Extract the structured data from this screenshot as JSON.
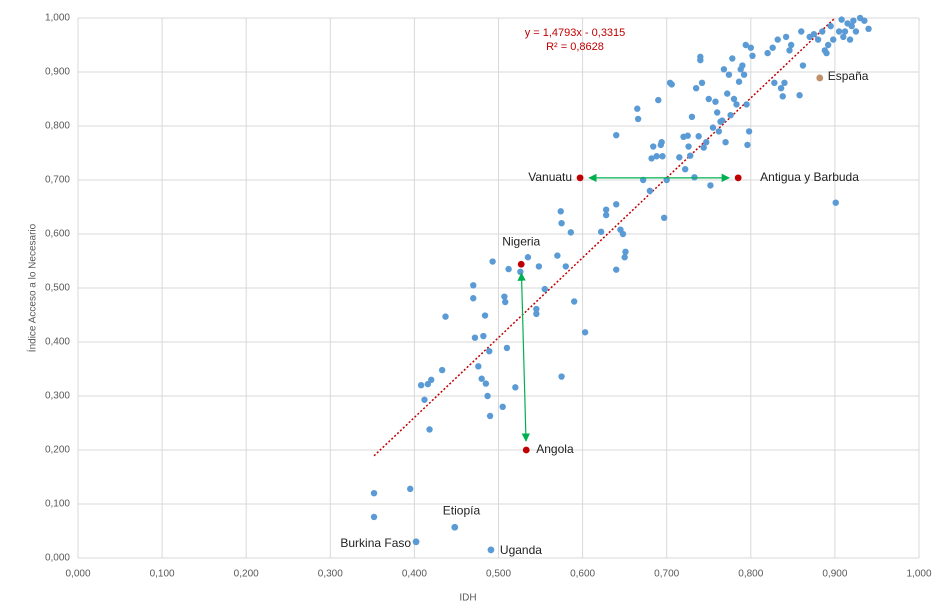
{
  "chart_data": {
    "type": "scatter",
    "x_label": "IDH",
    "y_label": "Índice Acceso a lo Necesario",
    "xlim": [
      0,
      1
    ],
    "ylim": [
      0,
      1
    ],
    "xticks": [
      {
        "value": 0,
        "label": "0,000"
      },
      {
        "value": 0.1,
        "label": "0,100"
      },
      {
        "value": 0.2,
        "label": "0,200"
      },
      {
        "value": 0.3,
        "label": "0,300"
      },
      {
        "value": 0.4,
        "label": "0,400"
      },
      {
        "value": 0.5,
        "label": "0,500"
      },
      {
        "value": 0.6,
        "label": "0,600"
      },
      {
        "value": 0.7,
        "label": "0,700"
      },
      {
        "value": 0.8,
        "label": "0,800"
      },
      {
        "value": 0.9,
        "label": "0,900"
      },
      {
        "value": 1,
        "label": "1,000"
      }
    ],
    "yticks": [
      {
        "value": 0,
        "label": "0,000"
      },
      {
        "value": 0.1,
        "label": "0,100"
      },
      {
        "value": 0.2,
        "label": "0,200"
      },
      {
        "value": 0.3,
        "label": "0,300"
      },
      {
        "value": 0.4,
        "label": "0,400"
      },
      {
        "value": 0.5,
        "label": "0,500"
      },
      {
        "value": 0.6,
        "label": "0,600"
      },
      {
        "value": 0.7,
        "label": "0,700"
      },
      {
        "value": 0.8,
        "label": "0,800"
      },
      {
        "value": 0.9,
        "label": "0,900"
      },
      {
        "value": 1,
        "label": "1,000"
      }
    ],
    "grid": true,
    "color": "#5b9bd5",
    "x": [
      0.352,
      0.352,
      0.395,
      0.408,
      0.412,
      0.416,
      0.418,
      0.42,
      0.433,
      0.437,
      0.47,
      0.47,
      0.472,
      0.476,
      0.48,
      0.482,
      0.484,
      0.485,
      0.487,
      0.489,
      0.49,
      0.493,
      0.505,
      0.507,
      0.508,
      0.51,
      0.512,
      0.52,
      0.526,
      0.535,
      0.545,
      0.545,
      0.548,
      0.555,
      0.57,
      0.574,
      0.575,
      0.575,
      0.58,
      0.586,
      0.59,
      0.603,
      0.622,
      0.628,
      0.628,
      0.64,
      0.64,
      0.645,
      0.648,
      0.65,
      0.651,
      0.64,
      0.665,
      0.666,
      0.672,
      0.68,
      0.682,
      0.684,
      0.688,
      0.69,
      0.693,
      0.694,
      0.695,
      0.697,
      0.7,
      0.704,
      0.706,
      0.715,
      0.72,
      0.722,
      0.725,
      0.726,
      0.728,
      0.73,
      0.733,
      0.735,
      0.738,
      0.74,
      0.74,
      0.742,
      0.744,
      0.747,
      0.75,
      0.752,
      0.755,
      0.758,
      0.76,
      0.762,
      0.764,
      0.766,
      0.768,
      0.77,
      0.772,
      0.774,
      0.776,
      0.778,
      0.78,
      0.783,
      0.786,
      0.788,
      0.79,
      0.792,
      0.794,
      0.795,
      0.796,
      0.798,
      0.8,
      0.802,
      0.82,
      0.826,
      0.828,
      0.832,
      0.836,
      0.838,
      0.84,
      0.842,
      0.846,
      0.848,
      0.858,
      0.86,
      0.862,
      0.87,
      0.875,
      0.88,
      0.885,
      0.888,
      0.89,
      0.892,
      0.895,
      0.898,
      0.901,
      0.905,
      0.908,
      0.91,
      0.912,
      0.915,
      0.918,
      0.92,
      0.922,
      0.925,
      0.93,
      0.935,
      0.94
    ],
    "values": [
      0.12,
      0.076,
      0.128,
      0.32,
      0.293,
      0.322,
      0.238,
      0.33,
      0.348,
      0.447,
      0.505,
      0.481,
      0.408,
      0.355,
      0.332,
      0.411,
      0.449,
      0.323,
      0.3,
      0.383,
      0.263,
      0.549,
      0.28,
      0.484,
      0.474,
      0.389,
      0.535,
      0.316,
      0.53,
      0.557,
      0.452,
      0.461,
      0.54,
      0.498,
      0.56,
      0.642,
      0.62,
      0.336,
      0.54,
      0.603,
      0.475,
      0.418,
      0.604,
      0.635,
      0.645,
      0.655,
      0.534,
      0.608,
      0.6,
      0.557,
      0.567,
      0.783,
      0.832,
      0.813,
      0.7,
      0.68,
      0.74,
      0.762,
      0.744,
      0.848,
      0.765,
      0.77,
      0.744,
      0.63,
      0.7,
      0.88,
      0.877,
      0.742,
      0.78,
      0.72,
      0.782,
      0.762,
      0.745,
      0.817,
      0.705,
      0.87,
      0.781,
      0.922,
      0.928,
      0.88,
      0.76,
      0.77,
      0.85,
      0.69,
      0.797,
      0.845,
      0.825,
      0.79,
      0.808,
      0.81,
      0.905,
      0.77,
      0.86,
      0.895,
      0.82,
      0.925,
      0.85,
      0.84,
      0.882,
      0.905,
      0.912,
      0.895,
      0.95,
      0.84,
      0.765,
      0.79,
      0.945,
      0.93,
      0.935,
      0.945,
      0.88,
      0.96,
      0.87,
      0.855,
      0.88,
      0.965,
      0.94,
      0.95,
      0.857,
      0.975,
      0.912,
      0.965,
      0.97,
      0.96,
      0.975,
      0.94,
      0.935,
      0.95,
      0.985,
      0.96,
      0.658,
      0.975,
      0.997,
      0.965,
      0.975,
      0.99,
      0.96,
      0.985,
      0.995,
      0.975,
      1.0,
      0.995,
      0.98
    ],
    "highlights": [
      {
        "label": "Nigeria",
        "x": 0.527,
        "y": 0.544,
        "color": "#c00000"
      },
      {
        "label": "Angola",
        "x": 0.533,
        "y": 0.2,
        "color": "#c00000"
      },
      {
        "label": "Vanuatu",
        "x": 0.597,
        "y": 0.704,
        "color": "#c00000"
      },
      {
        "label": "Antigua y Barbuda",
        "x": 0.785,
        "y": 0.704,
        "color": "#c00000"
      },
      {
        "label": "España",
        "x": 0.882,
        "y": 0.889,
        "color": "#c0906a"
      },
      {
        "label": "Burkina Faso",
        "x": 0.402,
        "y": 0.03,
        "color": "#5b9bd5"
      },
      {
        "label": "Etiopía",
        "x": 0.448,
        "y": 0.057,
        "color": "#5b9bd5"
      },
      {
        "label": "Uganda",
        "x": 0.491,
        "y": 0.015,
        "color": "#5b9bd5"
      }
    ],
    "trendline": {
      "slope": 1.4793,
      "intercept": -0.3315,
      "equation": "y = 1,4793x - 0,3315",
      "r2": "R² = 0,8628",
      "color": "#c00000"
    },
    "arrow_color": "#00b050"
  }
}
